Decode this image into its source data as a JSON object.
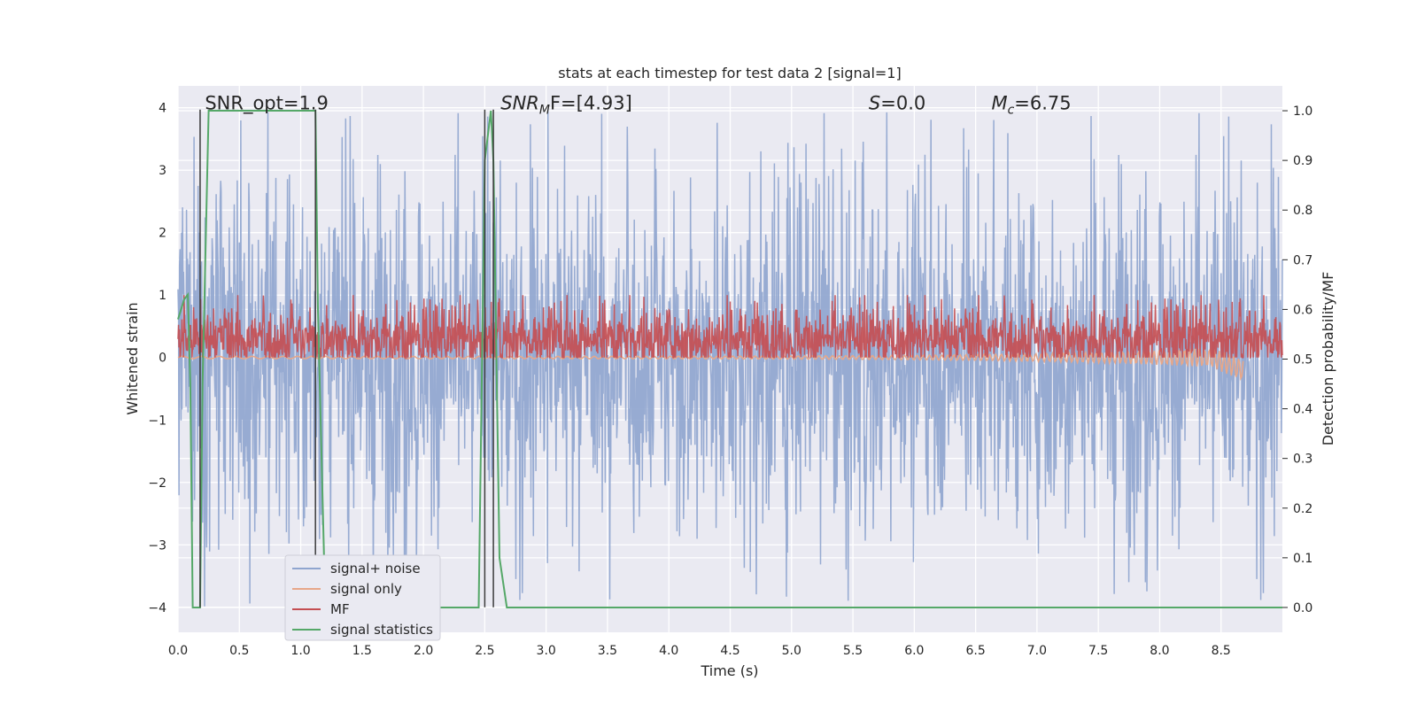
{
  "chart_data": {
    "type": "line",
    "title": "stats at each timestep for test data 2 [signal=1]",
    "xlabel": "Time (s)",
    "ylabel": "Whitened strain",
    "y2label": "Detection probability/MF",
    "xlim": [
      0.0,
      9.0
    ],
    "ylim": [
      -4.4,
      4.35
    ],
    "y2lim": [
      -0.05,
      1.05
    ],
    "xticks": [
      0.0,
      0.5,
      1.0,
      1.5,
      2.0,
      2.5,
      3.0,
      3.5,
      4.0,
      4.5,
      5.0,
      5.5,
      6.0,
      6.5,
      7.0,
      7.5,
      8.0,
      8.5
    ],
    "xtick_labels": [
      "0.0",
      "0.5",
      "1.0",
      "1.5",
      "2.0",
      "2.5",
      "3.0",
      "3.5",
      "4.0",
      "4.5",
      "5.0",
      "5.5",
      "6.0",
      "6.5",
      "7.0",
      "7.5",
      "8.0",
      "8.5"
    ],
    "yticks": [
      -4,
      -3,
      -2,
      -1,
      0,
      1,
      2,
      3,
      4
    ],
    "ytick_labels": [
      "−4",
      "−3",
      "−2",
      "−1",
      "0",
      "1",
      "2",
      "3",
      "4"
    ],
    "y2ticks": [
      0.0,
      0.1,
      0.2,
      0.3,
      0.4,
      0.5,
      0.6,
      0.7,
      0.8,
      0.9,
      1.0
    ],
    "y2tick_labels": [
      "0.0",
      "0.1",
      "0.2",
      "0.3",
      "0.4",
      "0.5",
      "0.6",
      "0.7",
      "0.8",
      "0.9",
      "1.0"
    ],
    "grid": true,
    "legend_position": "bottom-left",
    "annotations": [
      {
        "label": "SNR_opt=1.9",
        "x": 0.19,
        "y": 4.0
      },
      {
        "label": "SNR",
        "sub": "M",
        "rest": "F=[4.93]",
        "italic": true,
        "x": 2.6,
        "y": 4.0
      },
      {
        "label": "S",
        "rest": "=0.0",
        "italic": true,
        "x": 5.6,
        "y": 4.0
      },
      {
        "label": "M",
        "sub": "c",
        "rest": "=6.75",
        "italic": true,
        "x": 6.6,
        "y": 4.0
      }
    ],
    "vlines": [
      0.18,
      1.12,
      2.5,
      2.57
    ],
    "series": [
      {
        "name": "signal+ noise",
        "color": "#8fa5cf",
        "axis": "left",
        "kind": "noise",
        "band": [
          -1.6,
          1.6
        ],
        "extremes": [
          -4.0,
          4.0
        ],
        "x_range": [
          0.0,
          9.0
        ]
      },
      {
        "name": "signal only",
        "color": "#e7a789",
        "axis": "left",
        "kind": "chirp",
        "x_range": [
          0.0,
          8.68
        ],
        "end_value": -0.2
      },
      {
        "name": "MF",
        "color": "#c44e52",
        "axis": "left",
        "kind": "noise",
        "band": [
          0.0,
          0.6
        ],
        "extremes": [
          0.0,
          1.0
        ],
        "x_range": [
          0.0,
          9.0
        ]
      },
      {
        "name": "signal statistics",
        "color": "#55a868",
        "axis": "right",
        "kind": "line",
        "x": [
          0.0,
          0.05,
          0.08,
          0.1,
          0.12,
          0.18,
          0.2,
          0.25,
          1.0,
          1.12,
          1.14,
          1.18,
          1.2,
          2.45,
          2.5,
          2.55,
          2.57,
          2.62,
          2.68,
          9.0
        ],
        "y": [
          0.58,
          0.62,
          0.63,
          0.45,
          0.0,
          0.0,
          0.45,
          1.0,
          1.0,
          1.0,
          0.6,
          0.2,
          0.0,
          0.0,
          0.9,
          1.0,
          0.9,
          0.1,
          0.0,
          0.0
        ]
      }
    ]
  }
}
